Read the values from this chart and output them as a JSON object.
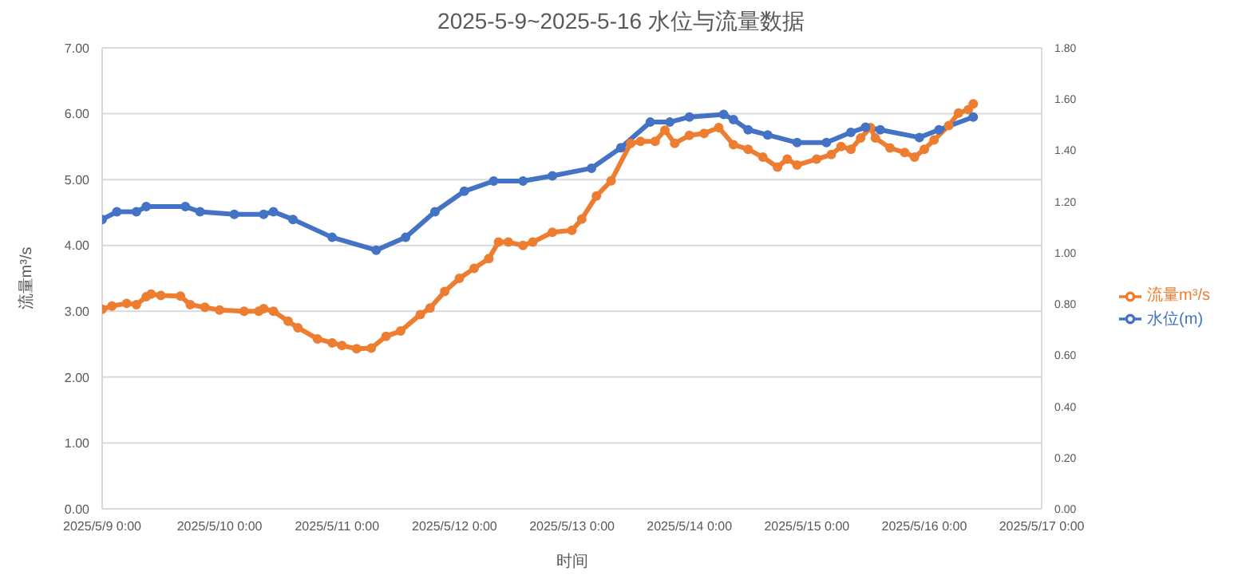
{
  "chart_data": {
    "type": "line",
    "title": "2025-5-9~2025-5-16 水位与流量数据",
    "xlabel": "时间",
    "ylabel": "流量m³/s",
    "xlim": [
      "2025-05-09T00:00",
      "2025-05-17T00:00"
    ],
    "xticks": [
      {
        "value": "2025-05-09T00:00",
        "label": "2025/5/9 0:00"
      },
      {
        "value": "2025-05-10T00:00",
        "label": "2025/5/10 0:00"
      },
      {
        "value": "2025-05-11T00:00",
        "label": "2025/5/11 0:00"
      },
      {
        "value": "2025-05-12T00:00",
        "label": "2025/5/12 0:00"
      },
      {
        "value": "2025-05-13T00:00",
        "label": "2025/5/13 0:00"
      },
      {
        "value": "2025-05-14T00:00",
        "label": "2025/5/14 0:00"
      },
      {
        "value": "2025-05-15T00:00",
        "label": "2025/5/15 0:00"
      },
      {
        "value": "2025-05-16T00:00",
        "label": "2025/5/16 0:00"
      },
      {
        "value": "2025-05-17T00:00",
        "label": "2025/5/17 0:00"
      }
    ],
    "ylim": [
      0,
      7
    ],
    "yticks": [
      {
        "value": 0,
        "label": "0.00"
      },
      {
        "value": 1,
        "label": "1.00"
      },
      {
        "value": 2,
        "label": "2.00"
      },
      {
        "value": 3,
        "label": "3.00"
      },
      {
        "value": 4,
        "label": "4.00"
      },
      {
        "value": 5,
        "label": "5.00"
      },
      {
        "value": 6,
        "label": "6.00"
      },
      {
        "value": 7,
        "label": "7.00"
      }
    ],
    "y2lim": [
      0,
      1.8
    ],
    "y2ticks": [
      {
        "value": 0,
        "label": "0.00"
      },
      {
        "value": 0.2,
        "label": "0.20"
      },
      {
        "value": 0.4,
        "label": "0.40"
      },
      {
        "value": 0.6,
        "label": "0.60"
      },
      {
        "value": 0.8,
        "label": "0.80"
      },
      {
        "value": 1,
        "label": "1.00"
      },
      {
        "value": 1.2,
        "label": "1.20"
      },
      {
        "value": 1.4,
        "label": "1.40"
      },
      {
        "value": 1.6,
        "label": "1.60"
      },
      {
        "value": 1.8,
        "label": "1.80"
      }
    ],
    "grid": "y",
    "legend": "right",
    "marker": "circle",
    "line_style": "solid",
    "series": [
      {
        "name": "流量m³/s",
        "color": "#ed7d31",
        "x": [
          "2025-05-09T00:00",
          "2025-05-09T02:00",
          "2025-05-09T05:00",
          "2025-05-09T07:00",
          "2025-05-09T09:00",
          "2025-05-09T10:00",
          "2025-05-09T12:00",
          "2025-05-09T16:00",
          "2025-05-09T18:00",
          "2025-05-09T21:00",
          "2025-05-10T00:00",
          "2025-05-10T05:00",
          "2025-05-10T08:00",
          "2025-05-10T09:00",
          "2025-05-10T11:00",
          "2025-05-10T14:00",
          "2025-05-10T16:00",
          "2025-05-10T20:00",
          "2025-05-10T23:00",
          "2025-05-11T01:00",
          "2025-05-11T04:00",
          "2025-05-11T07:00",
          "2025-05-11T10:00",
          "2025-05-11T13:00",
          "2025-05-11T17:00",
          "2025-05-11T19:00",
          "2025-05-11T22:00",
          "2025-05-12T01:00",
          "2025-05-12T04:00",
          "2025-05-12T07:00",
          "2025-05-12T09:00",
          "2025-05-12T11:00",
          "2025-05-12T14:00",
          "2025-05-12T16:00",
          "2025-05-12T20:00",
          "2025-05-13T00:00",
          "2025-05-13T02:00",
          "2025-05-13T05:00",
          "2025-05-13T08:00",
          "2025-05-13T12:00",
          "2025-05-13T14:00",
          "2025-05-13T17:00",
          "2025-05-13T19:00",
          "2025-05-13T21:00",
          "2025-05-14T00:00",
          "2025-05-14T03:00",
          "2025-05-14T06:00",
          "2025-05-14T09:00",
          "2025-05-14T12:00",
          "2025-05-14T15:00",
          "2025-05-14T18:00",
          "2025-05-14T20:00",
          "2025-05-14T22:00",
          "2025-05-15T02:00",
          "2025-05-15T05:00",
          "2025-05-15T07:00",
          "2025-05-15T09:00",
          "2025-05-15T11:00",
          "2025-05-15T13:00",
          "2025-05-15T14:00",
          "2025-05-15T17:00",
          "2025-05-15T20:00",
          "2025-05-15T22:00",
          "2025-05-16T00:00",
          "2025-05-16T02:00",
          "2025-05-16T05:00",
          "2025-05-16T07:00",
          "2025-05-16T09:00",
          "2025-05-16T10:00"
        ],
        "values": [
          3.03,
          3.08,
          3.12,
          3.1,
          3.22,
          3.26,
          3.24,
          3.23,
          3.1,
          3.06,
          3.02,
          3.0,
          3.0,
          3.04,
          3.0,
          2.85,
          2.75,
          2.58,
          2.52,
          2.48,
          2.43,
          2.44,
          2.62,
          2.7,
          2.95,
          3.05,
          3.3,
          3.5,
          3.65,
          3.8,
          4.05,
          4.05,
          4.0,
          4.05,
          4.2,
          4.23,
          4.4,
          4.75,
          4.98,
          5.55,
          5.58,
          5.58,
          5.75,
          5.55,
          5.67,
          5.7,
          5.79,
          5.53,
          5.46,
          5.34,
          5.19,
          5.31,
          5.22,
          5.31,
          5.38,
          5.5,
          5.46,
          5.63,
          5.79,
          5.63,
          5.48,
          5.41,
          5.34,
          5.46,
          5.6,
          5.82,
          6.01,
          6.06,
          6.15
        ]
      },
      {
        "name": "水位(m)",
        "color": "#4472c4",
        "axis": "y2",
        "x": [
          "2025-05-09T00:00",
          "2025-05-09T03:00",
          "2025-05-09T07:00",
          "2025-05-09T09:00",
          "2025-05-09T17:00",
          "2025-05-09T20:00",
          "2025-05-10T03:00",
          "2025-05-10T09:00",
          "2025-05-10T11:00",
          "2025-05-10T15:00",
          "2025-05-10T23:00",
          "2025-05-11T08:00",
          "2025-05-11T14:00",
          "2025-05-11T20:00",
          "2025-05-12T02:00",
          "2025-05-12T08:00",
          "2025-05-12T14:00",
          "2025-05-12T20:00",
          "2025-05-13T04:00",
          "2025-05-13T10:00",
          "2025-05-13T16:00",
          "2025-05-13T20:00",
          "2025-05-14T00:00",
          "2025-05-14T07:00",
          "2025-05-14T09:00",
          "2025-05-14T12:00",
          "2025-05-14T16:00",
          "2025-05-14T22:00",
          "2025-05-15T04:00",
          "2025-05-15T09:00",
          "2025-05-15T12:00",
          "2025-05-15T15:00",
          "2025-05-15T23:00",
          "2025-05-16T03:00",
          "2025-05-16T10:00"
        ],
        "values": [
          1.13,
          1.16,
          1.16,
          1.18,
          1.18,
          1.16,
          1.15,
          1.15,
          1.16,
          1.13,
          1.06,
          1.01,
          1.06,
          1.16,
          1.24,
          1.28,
          1.28,
          1.3,
          1.33,
          1.41,
          1.51,
          1.51,
          1.53,
          1.54,
          1.52,
          1.48,
          1.46,
          1.43,
          1.43,
          1.47,
          1.49,
          1.48,
          1.45,
          1.48,
          1.53
        ]
      }
    ]
  }
}
